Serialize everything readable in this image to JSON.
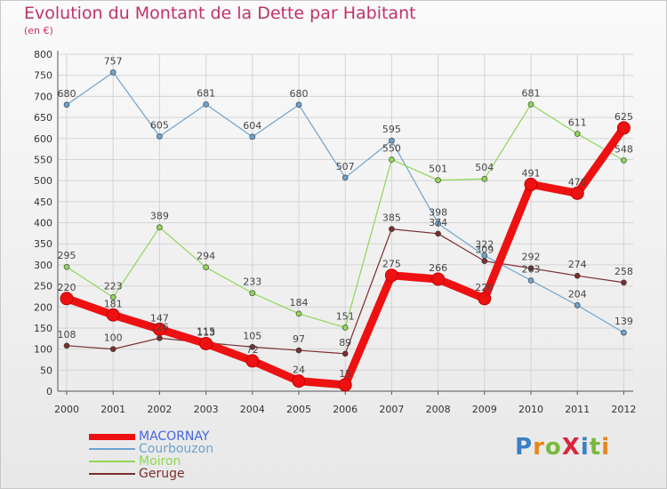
{
  "title": "Evolution du Montant de la Dette par Habitant",
  "subtitle": "(en €)",
  "brand": {
    "text": "ProXiti",
    "letter_colors": [
      "#3b7fc4",
      "#e8861a",
      "#7ab83b",
      "#d9263c",
      "#3b7fc4",
      "#7ab83b",
      "#e8861a"
    ]
  },
  "chart_data": {
    "type": "line",
    "x": [
      "2000",
      "2001",
      "2002",
      "2003",
      "2004",
      "2005",
      "2006",
      "2007",
      "2008",
      "2009",
      "2010",
      "2011",
      "2012"
    ],
    "ylim": [
      0,
      800
    ],
    "yticks": [
      "0",
      "50",
      "100",
      "150",
      "200",
      "250",
      "300",
      "350",
      "400",
      "450",
      "500",
      "550",
      "600",
      "650",
      "700",
      "750",
      "800"
    ],
    "grid": true,
    "legend_position": "bottom-left",
    "series": [
      {
        "name": "MACORNAY",
        "color": "#ee1111",
        "values": [
          220,
          181,
          147,
          113,
          72,
          24,
          15,
          275,
          266,
          220,
          491,
          470,
          625
        ],
        "labels": [
          "220",
          "181",
          "147",
          "113",
          "72",
          "24",
          "15",
          "275",
          "266",
          "220",
          "491",
          "470",
          "625"
        ]
      },
      {
        "name": "Courbouzon",
        "color": "#6ea3cf",
        "values": [
          680,
          757,
          605,
          681,
          604,
          680,
          507,
          595,
          398,
          322,
          263,
          204,
          139
        ],
        "labels": [
          "680",
          "757",
          "605",
          "681",
          "604",
          "680",
          "507",
          "595",
          "398",
          "322",
          "263",
          "204",
          "139"
        ]
      },
      {
        "name": "Moiron",
        "color": "#8fd657",
        "values": [
          295,
          223,
          389,
          294,
          233,
          184,
          151,
          550,
          501,
          504,
          681,
          611,
          548
        ],
        "labels": [
          "295",
          "223",
          "389",
          "294",
          "233",
          "184",
          "151",
          "550",
          "501",
          "504",
          "681",
          "611",
          "548"
        ]
      },
      {
        "name": "Geruge",
        "color": "#7a2f2f",
        "values": [
          108,
          100,
          126,
          115,
          105,
          97,
          89,
          385,
          374,
          309,
          292,
          274,
          258
        ],
        "labels": [
          "108",
          "100",
          "126",
          "115",
          "105",
          "97",
          "89",
          "385",
          "374",
          "309",
          "292",
          "274",
          "258"
        ]
      }
    ]
  }
}
